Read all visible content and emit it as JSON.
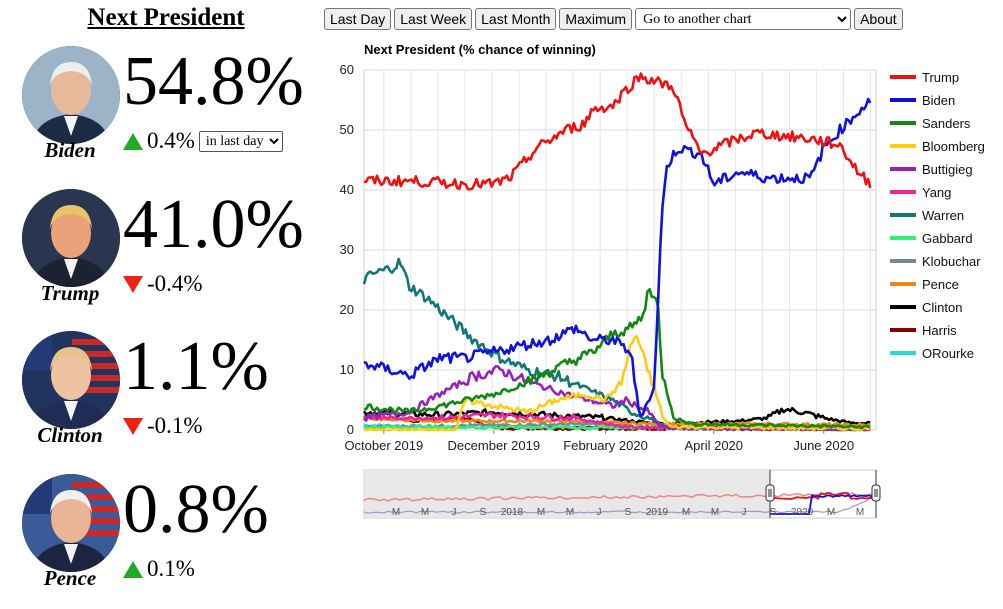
{
  "page": {
    "title": "Next President"
  },
  "candidates": [
    {
      "name": "Biden",
      "pct": "54.8%",
      "direction": "up",
      "change": "0.4%",
      "avatar_color": "#9bb4c8",
      "skin": "#e7b89a",
      "hair": "#eeeeee",
      "suit": "#1b2a45",
      "flag": false
    },
    {
      "name": "Trump",
      "pct": "41.0%",
      "direction": "down",
      "change": "-0.4%",
      "avatar_color": "#2a3550",
      "skin": "#e9a27a",
      "hair": "#e7c36a",
      "suit": "#1a2233",
      "flag": false
    },
    {
      "name": "Clinton",
      "pct": "1.1%",
      "direction": "down",
      "change": "-0.1%",
      "avatar_color": "#21345e",
      "skin": "#efc2a2",
      "hair": "#e5c48a",
      "suit": "#1f2d55",
      "flag": true
    },
    {
      "name": "Pence",
      "pct": "0.8%",
      "direction": "up",
      "change": "0.1%",
      "avatar_color": "#3a5a98",
      "skin": "#eab596",
      "hair": "#f0f0f0",
      "suit": "#1b2440",
      "flag": true
    }
  ],
  "period_select": {
    "value": "in last day"
  },
  "toolbar": {
    "last_day": "Last Day",
    "last_week": "Last Week",
    "last_month": "Last Month",
    "maximum": "Maximum",
    "goto_chart": "Go to another chart",
    "about": "About"
  },
  "colors": {
    "up": "#22aa22",
    "down": "#ee2211"
  },
  "chart_data": {
    "type": "line",
    "title": "Next President (% chance of winning)",
    "ylim": [
      0,
      60
    ],
    "yticks": [
      0,
      10,
      20,
      30,
      40,
      50,
      60
    ],
    "x_start": "2019-09-20",
    "x_end": "2020-06-30",
    "x_ticks": [
      {
        "date": "2019-10-01",
        "label": "October 2019"
      },
      {
        "date": "2019-12-01",
        "label": "December 2019"
      },
      {
        "date": "2020-02-01",
        "label": "February 2020"
      },
      {
        "date": "2020-04-01",
        "label": "April 2020"
      },
      {
        "date": "2020-06-01",
        "label": "June 2020"
      }
    ],
    "grid": true,
    "legend_position": "right",
    "series": [
      {
        "name": "Trump",
        "color": "#ee1111",
        "points": [
          [
            "2019-09-20",
            41.5
          ],
          [
            "2019-10-15",
            41.5
          ],
          [
            "2019-11-15",
            41
          ],
          [
            "2019-12-01",
            41
          ],
          [
            "2019-12-10",
            42
          ],
          [
            "2019-12-25",
            47
          ],
          [
            "2020-01-10",
            50
          ],
          [
            "2020-01-20",
            51
          ],
          [
            "2020-01-25",
            53.5
          ],
          [
            "2020-02-05",
            54
          ],
          [
            "2020-02-10",
            56
          ],
          [
            "2020-02-20",
            59
          ],
          [
            "2020-03-01",
            58
          ],
          [
            "2020-03-10",
            57
          ],
          [
            "2020-03-16",
            51
          ],
          [
            "2020-03-25",
            46
          ],
          [
            "2020-04-10",
            48
          ],
          [
            "2020-04-25",
            49.5
          ],
          [
            "2020-05-10",
            49
          ],
          [
            "2020-05-25",
            48.5
          ],
          [
            "2020-06-10",
            47.5
          ],
          [
            "2020-06-20",
            43
          ],
          [
            "2020-06-27",
            41
          ]
        ]
      },
      {
        "name": "Biden",
        "color": "#1111dd",
        "points": [
          [
            "2019-09-20",
            11
          ],
          [
            "2019-10-05",
            10
          ],
          [
            "2019-10-15",
            9
          ],
          [
            "2019-11-01",
            12
          ],
          [
            "2019-11-15",
            12
          ],
          [
            "2019-12-01",
            13
          ],
          [
            "2019-12-15",
            14
          ],
          [
            "2020-01-01",
            15
          ],
          [
            "2020-01-15",
            17
          ],
          [
            "2020-01-25",
            15
          ],
          [
            "2020-02-05",
            15
          ],
          [
            "2020-02-15",
            13
          ],
          [
            "2020-02-20",
            2
          ],
          [
            "2020-02-28",
            7
          ],
          [
            "2020-03-03",
            35
          ],
          [
            "2020-03-06",
            44
          ],
          [
            "2020-03-12",
            47
          ],
          [
            "2020-03-25",
            46
          ],
          [
            "2020-04-01",
            41
          ],
          [
            "2020-04-15",
            43
          ],
          [
            "2020-05-01",
            42
          ],
          [
            "2020-05-15",
            42
          ],
          [
            "2020-05-25",
            42
          ],
          [
            "2020-06-01",
            47
          ],
          [
            "2020-06-10",
            50
          ],
          [
            "2020-06-20",
            53
          ],
          [
            "2020-06-27",
            55
          ]
        ]
      },
      {
        "name": "Sanders",
        "color": "#118811",
        "points": [
          [
            "2019-09-20",
            4
          ],
          [
            "2019-10-15",
            3
          ],
          [
            "2019-11-01",
            4
          ],
          [
            "2019-12-01",
            6
          ],
          [
            "2019-12-20",
            8
          ],
          [
            "2020-01-10",
            11
          ],
          [
            "2020-01-25",
            13
          ],
          [
            "2020-02-05",
            16
          ],
          [
            "2020-02-15",
            17
          ],
          [
            "2020-02-22",
            19
          ],
          [
            "2020-02-25",
            24
          ],
          [
            "2020-03-01",
            21
          ],
          [
            "2020-03-03",
            10
          ],
          [
            "2020-03-10",
            2
          ],
          [
            "2020-03-20",
            1
          ],
          [
            "2020-06-27",
            0.5
          ]
        ]
      },
      {
        "name": "Bloomberg",
        "color": "#ffcc11",
        "points": [
          [
            "2019-09-20",
            0
          ],
          [
            "2019-11-10",
            0
          ],
          [
            "2019-11-15",
            5
          ],
          [
            "2019-12-01",
            4
          ],
          [
            "2019-12-20",
            3
          ],
          [
            "2020-01-05",
            5
          ],
          [
            "2020-01-20",
            6
          ],
          [
            "2020-02-01",
            5
          ],
          [
            "2020-02-10",
            8
          ],
          [
            "2020-02-15",
            14
          ],
          [
            "2020-02-18",
            16
          ],
          [
            "2020-02-22",
            12
          ],
          [
            "2020-02-28",
            7
          ],
          [
            "2020-03-04",
            2
          ],
          [
            "2020-03-08",
            0.5
          ],
          [
            "2020-06-27",
            0.2
          ]
        ]
      },
      {
        "name": "Buttigieg",
        "color": "#9922bb",
        "points": [
          [
            "2019-09-20",
            2
          ],
          [
            "2019-10-15",
            3
          ],
          [
            "2019-11-01",
            6
          ],
          [
            "2019-11-20",
            9
          ],
          [
            "2019-12-05",
            10
          ],
          [
            "2019-12-20",
            8
          ],
          [
            "2020-01-10",
            6
          ],
          [
            "2020-02-05",
            4
          ],
          [
            "2020-02-12",
            5
          ],
          [
            "2020-02-25",
            3
          ],
          [
            "2020-03-01",
            1
          ],
          [
            "2020-03-05",
            0.3
          ],
          [
            "2020-06-27",
            0.1
          ]
        ]
      },
      {
        "name": "Yang",
        "color": "#ee2299",
        "points": [
          [
            "2019-09-20",
            2
          ],
          [
            "2019-11-01",
            2
          ],
          [
            "2019-12-01",
            2.5
          ],
          [
            "2020-01-15",
            2
          ],
          [
            "2020-02-12",
            0.5
          ],
          [
            "2020-06-27",
            0.1
          ]
        ]
      },
      {
        "name": "Warren",
        "color": "#117777",
        "points": [
          [
            "2019-09-20",
            25
          ],
          [
            "2019-09-25",
            26
          ],
          [
            "2019-10-05",
            27
          ],
          [
            "2019-10-10",
            28
          ],
          [
            "2019-10-15",
            24
          ],
          [
            "2019-10-25",
            22
          ],
          [
            "2019-11-05",
            19
          ],
          [
            "2019-11-20",
            15
          ],
          [
            "2019-12-05",
            12
          ],
          [
            "2019-12-20",
            10
          ],
          [
            "2020-01-05",
            9
          ],
          [
            "2020-01-20",
            7
          ],
          [
            "2020-02-05",
            5
          ],
          [
            "2020-02-15",
            3
          ],
          [
            "2020-02-25",
            2
          ],
          [
            "2020-03-05",
            0.5
          ],
          [
            "2020-06-27",
            0.2
          ]
        ]
      },
      {
        "name": "Gabbard",
        "color": "#33ee77",
        "points": [
          [
            "2019-09-20",
            0.5
          ],
          [
            "2020-06-27",
            0.3
          ]
        ]
      },
      {
        "name": "Klobuchar",
        "color": "#778899",
        "points": [
          [
            "2019-09-20",
            0.5
          ],
          [
            "2020-01-25",
            1
          ],
          [
            "2020-03-02",
            0.3
          ],
          [
            "2020-06-27",
            0.2
          ]
        ]
      },
      {
        "name": "Pence",
        "color": "#ee8811",
        "points": [
          [
            "2019-09-20",
            2
          ],
          [
            "2019-11-01",
            1.5
          ],
          [
            "2020-01-01",
            1.5
          ],
          [
            "2020-03-01",
            1
          ],
          [
            "2020-05-01",
            1
          ],
          [
            "2020-06-27",
            0.8
          ]
        ]
      },
      {
        "name": "Clinton",
        "color": "#000000",
        "points": [
          [
            "2019-09-20",
            3
          ],
          [
            "2019-11-01",
            2.5
          ],
          [
            "2019-12-01",
            3
          ],
          [
            "2020-01-01",
            2.5
          ],
          [
            "2020-02-01",
            2
          ],
          [
            "2020-03-01",
            1
          ],
          [
            "2020-04-15",
            1.5
          ],
          [
            "2020-05-01",
            2
          ],
          [
            "2020-05-10",
            3.5
          ],
          [
            "2020-05-20",
            3
          ],
          [
            "2020-06-01",
            2
          ],
          [
            "2020-06-15",
            1.2
          ],
          [
            "2020-06-27",
            1.1
          ]
        ]
      },
      {
        "name": "Harris",
        "color": "#880000",
        "points": [
          [
            "2019-09-20",
            2.5
          ],
          [
            "2019-10-15",
            1.5
          ],
          [
            "2019-11-15",
            2
          ],
          [
            "2019-12-03",
            0.3
          ],
          [
            "2020-06-27",
            0.2
          ]
        ]
      },
      {
        "name": "ORourke",
        "color": "#22dddd",
        "points": [
          [
            "2019-09-20",
            0.8
          ],
          [
            "2019-11-01",
            0.5
          ],
          [
            "2020-06-27",
            0.1
          ]
        ]
      }
    ],
    "navigator": {
      "labels": [
        "M",
        "M",
        "J",
        "S",
        "2018",
        "M",
        "M",
        "J",
        "S",
        "2019",
        "M",
        "M",
        "J",
        "S",
        "2020",
        "M",
        "M"
      ]
    }
  }
}
